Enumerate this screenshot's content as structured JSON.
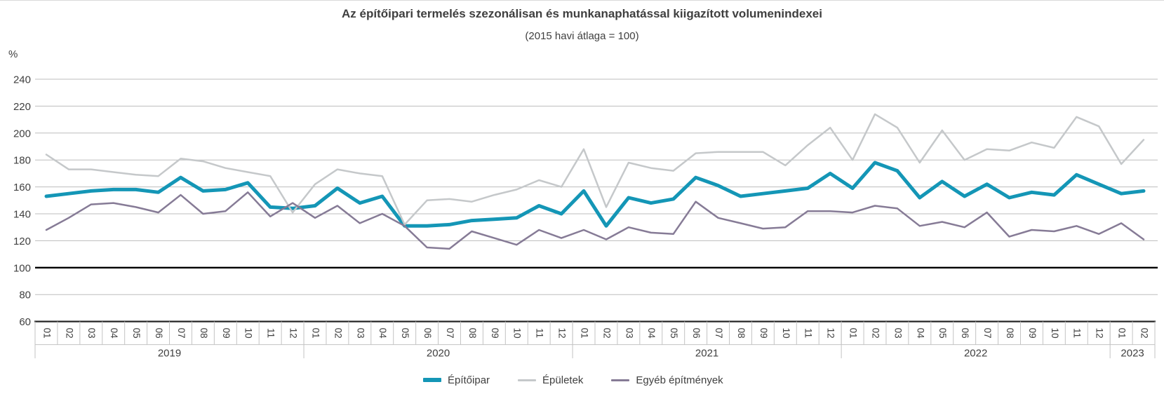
{
  "page": {
    "background": "#ffffff",
    "top_border_color": "#d9d9d9"
  },
  "chart": {
    "title": "Az építőipari termelés szezonálisan és munkanaphatással kiigazított volumenindexei",
    "subtitle": "(2015 havi átlaga = 100)",
    "y_unit": "%"
  },
  "chart_data": {
    "type": "line",
    "title": "Az építőipari termelés szezonálisan és munkanaphatással kiigazított volumenindexei",
    "subtitle": "(2015 havi átlaga = 100)",
    "ylabel": "%",
    "ylim": [
      60,
      240
    ],
    "ytick_step": 20,
    "yticks": [
      240,
      220,
      200,
      180,
      160,
      140,
      120,
      100,
      80,
      60
    ],
    "baseline": 100,
    "grid": true,
    "legend_position": "bottom",
    "colors": {
      "grid": "#bdbdbd",
      "baseline": "#000000",
      "axis_line": "#262626",
      "cell_border": "#c3c3c3",
      "text": "#404040"
    },
    "years": [
      {
        "label": "2019",
        "months": 12
      },
      {
        "label": "2020",
        "months": 12
      },
      {
        "label": "2021",
        "months": 12
      },
      {
        "label": "2022",
        "months": 12
      },
      {
        "label": "2023",
        "months": 2
      }
    ],
    "month_labels": [
      "01",
      "02",
      "03",
      "04",
      "05",
      "06",
      "07",
      "08",
      "09",
      "10",
      "11",
      "12",
      "01",
      "02",
      "03",
      "04",
      "05",
      "06",
      "07",
      "08",
      "09",
      "10",
      "11",
      "12",
      "01",
      "02",
      "03",
      "04",
      "05",
      "06",
      "07",
      "08",
      "09",
      "10",
      "11",
      "12",
      "01",
      "02",
      "03",
      "04",
      "05",
      "06",
      "07",
      "08",
      "09",
      "10",
      "11",
      "12",
      "01",
      "02"
    ],
    "series": [
      {
        "name": "Építőipar",
        "color": "#1496b6",
        "width": 5,
        "values": [
          153,
          155,
          157,
          158,
          158,
          156,
          167,
          157,
          158,
          163,
          145,
          144,
          146,
          159,
          148,
          153,
          131,
          131,
          132,
          135,
          136,
          137,
          146,
          140,
          157,
          131,
          152,
          148,
          151,
          167,
          161,
          153,
          155,
          157,
          159,
          170,
          159,
          178,
          172,
          152,
          164,
          153,
          162,
          152,
          156,
          154,
          169,
          162,
          155,
          157
        ]
      },
      {
        "name": "Épületek",
        "color": "#c5c8ca",
        "width": 2.5,
        "values": [
          184,
          173,
          173,
          171,
          169,
          168,
          181,
          179,
          174,
          171,
          168,
          141,
          162,
          173,
          170,
          168,
          132,
          150,
          151,
          149,
          154,
          158,
          165,
          160,
          188,
          145,
          178,
          174,
          172,
          185,
          186,
          186,
          186,
          176,
          191,
          204,
          180,
          214,
          204,
          178,
          202,
          180,
          188,
          187,
          193,
          189,
          212,
          205,
          177,
          195
        ]
      },
      {
        "name": "Egyéb építmények",
        "color": "#867b96",
        "width": 2.5,
        "values": [
          128,
          137,
          147,
          148,
          145,
          141,
          154,
          140,
          142,
          156,
          138,
          148,
          137,
          146,
          133,
          140,
          131,
          115,
          114,
          127,
          122,
          117,
          128,
          122,
          128,
          121,
          130,
          126,
          125,
          149,
          137,
          133,
          129,
          130,
          142,
          142,
          141,
          146,
          144,
          131,
          134,
          130,
          141,
          123,
          128,
          127,
          131,
          125,
          133,
          121
        ]
      }
    ]
  }
}
